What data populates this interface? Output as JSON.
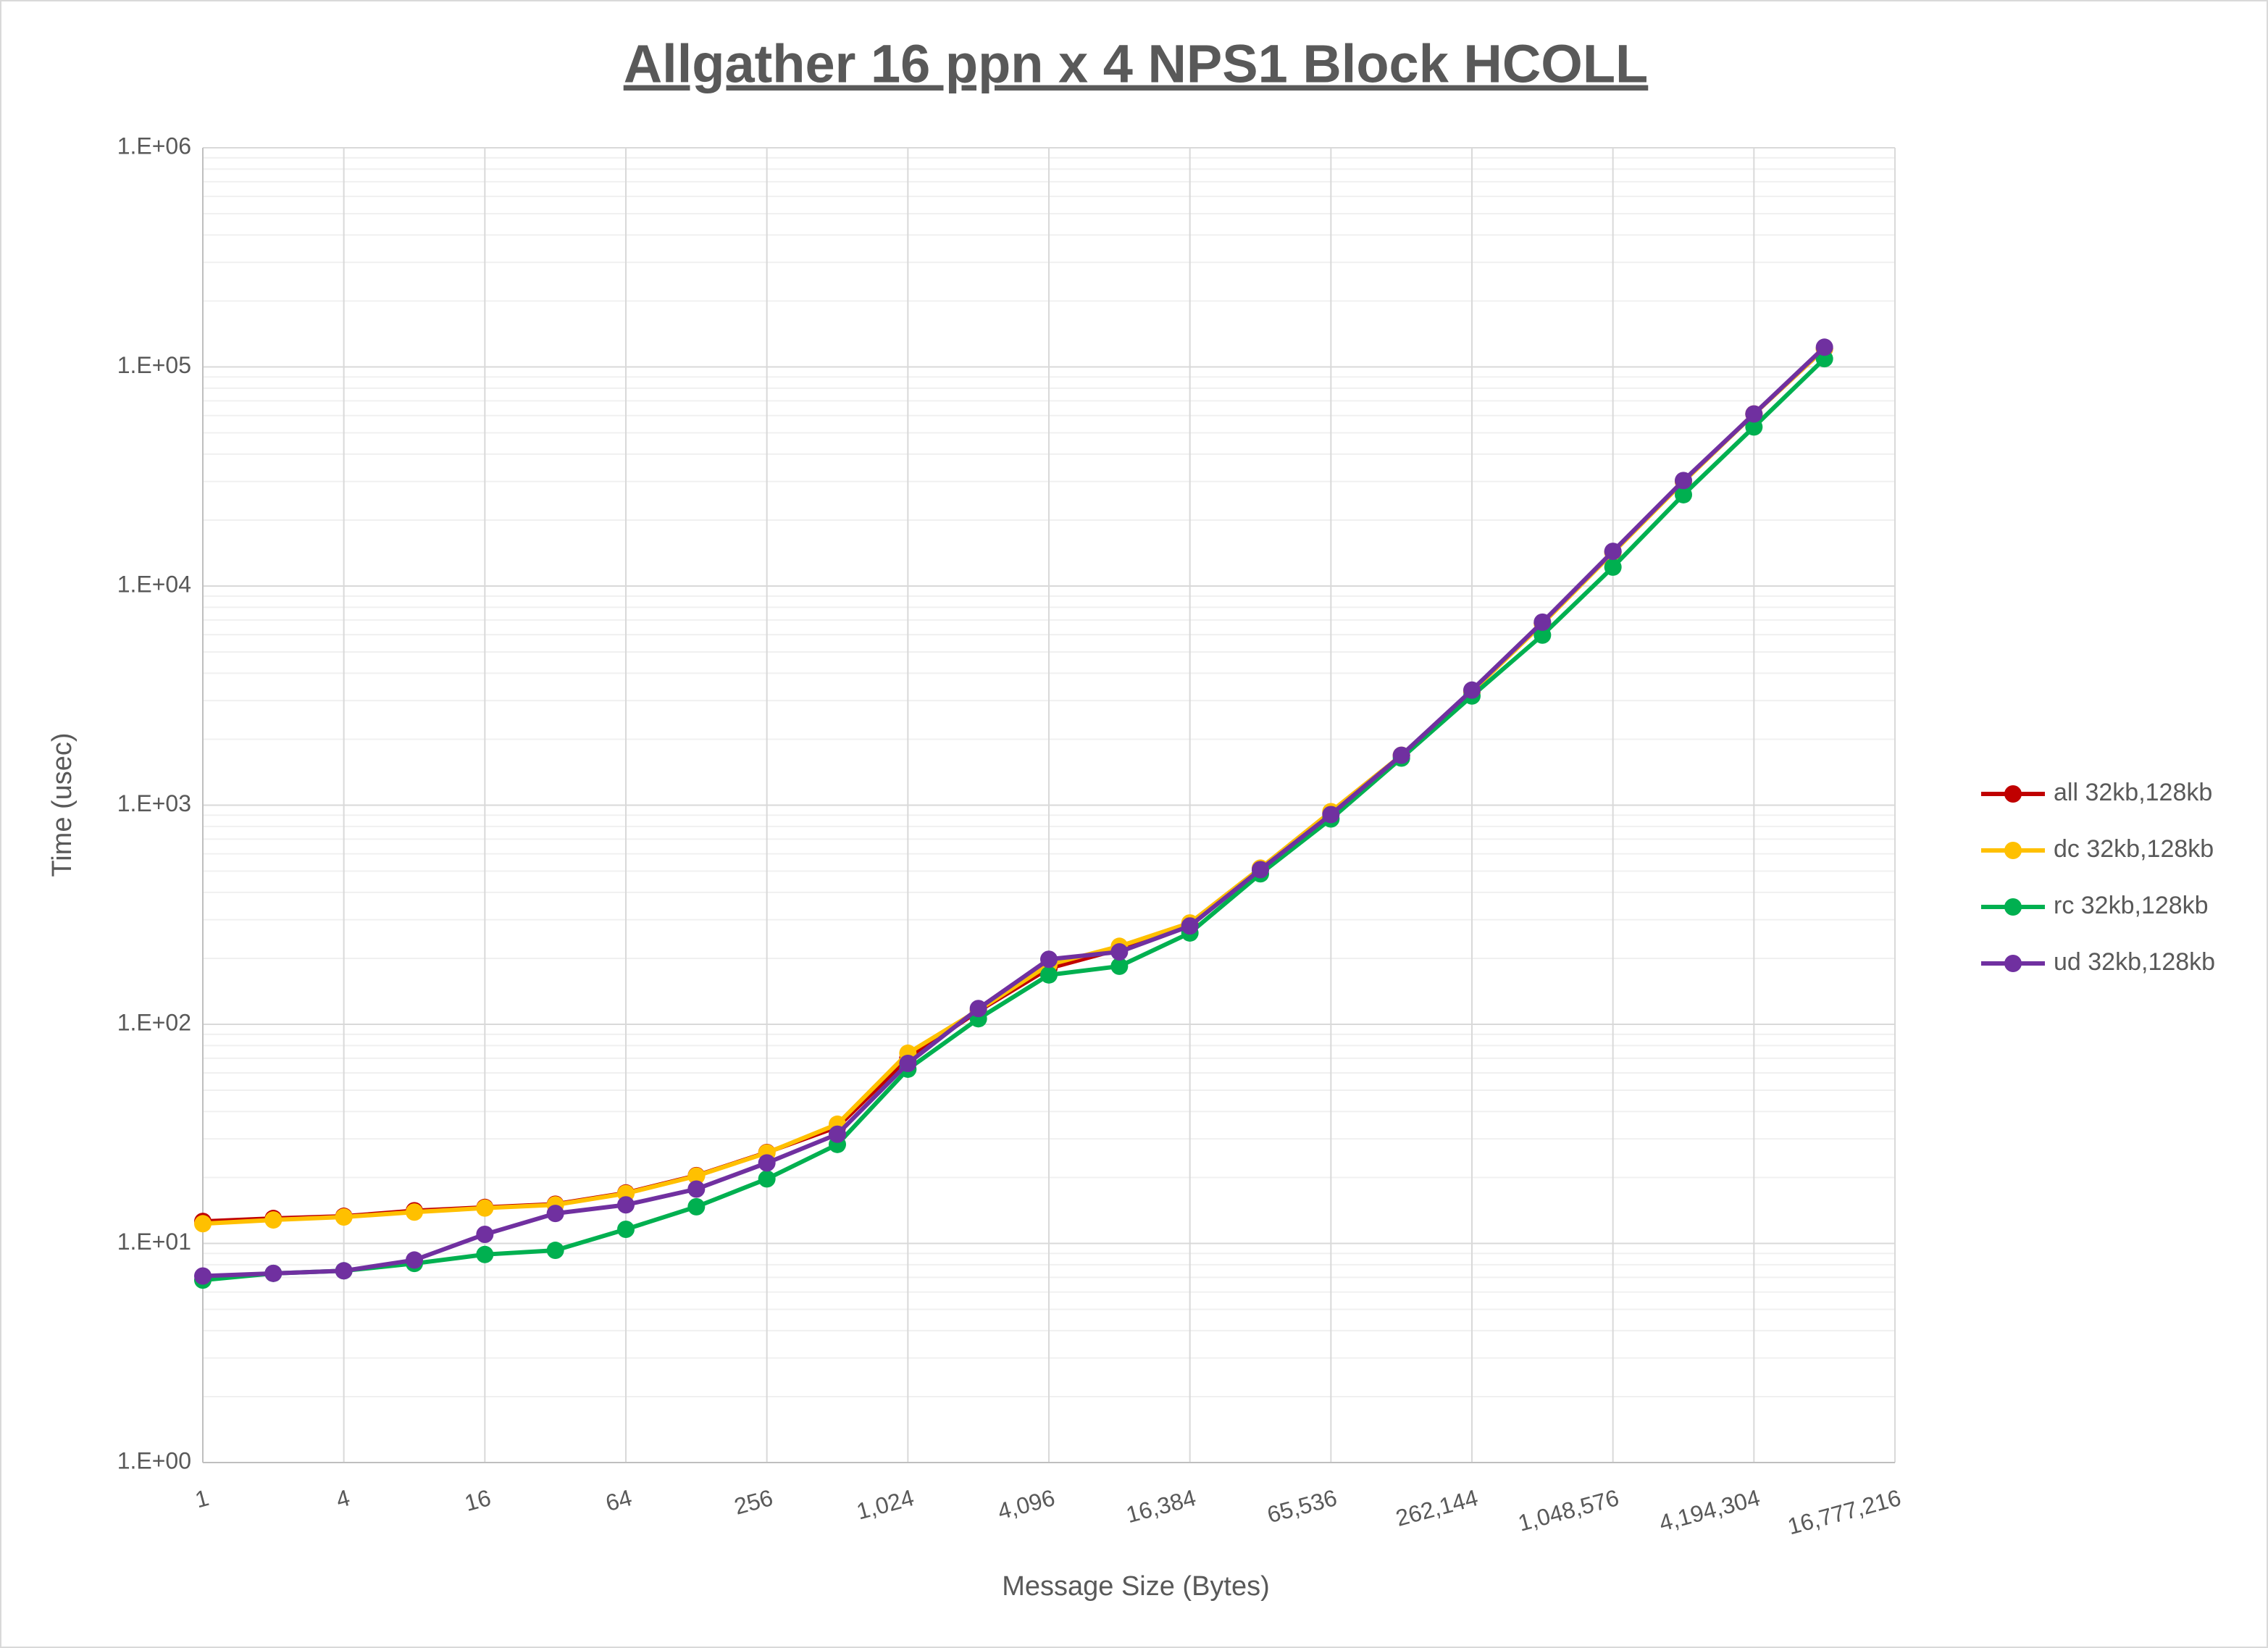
{
  "chart_data": {
    "type": "line",
    "title": "Allgather 16 ppn x 4 NPS1 Block HCOLL",
    "x_label": "Message Size (Bytes)",
    "y_label": "Time (usec)",
    "x": [
      1,
      2,
      4,
      8,
      16,
      32,
      64,
      128,
      256,
      512,
      1024,
      2048,
      4096,
      8192,
      16384,
      32768,
      65536,
      131072,
      262144,
      524288,
      1048576,
      2097152,
      4194304,
      8388608
    ],
    "series": [
      {
        "name": "all 32kb,128kb",
        "color": "#c00000",
        "values": [
          12.6,
          13.0,
          13.3,
          14.1,
          14.6,
          15.1,
          17.0,
          20.4,
          26.0,
          34.0,
          70.0,
          115,
          180,
          220,
          285,
          510,
          920,
          1680,
          3300,
          6750,
          14300,
          30000,
          61000,
          121000
        ]
      },
      {
        "name": "dc 32kb,128kb",
        "color": "#ffc000",
        "values": [
          12.3,
          12.8,
          13.2,
          13.9,
          14.5,
          15.0,
          16.9,
          20.3,
          25.9,
          35.0,
          73.8,
          116,
          187,
          227,
          290,
          516,
          934,
          1690,
          3300,
          6730,
          14200,
          29900,
          60900,
          121000
        ]
      },
      {
        "name": "rc 32kb,128kb",
        "color": "#00b050",
        "values": [
          6.8,
          7.3,
          7.5,
          8.1,
          8.9,
          9.3,
          11.6,
          14.7,
          19.7,
          28.3,
          62.4,
          106,
          168,
          184,
          261,
          486,
          865,
          1640,
          3150,
          5970,
          12200,
          26100,
          53200,
          109000
        ]
      },
      {
        "name": "ud 32kb,128kb",
        "color": "#7030a0",
        "values": [
          7.1,
          7.3,
          7.5,
          8.4,
          11.0,
          13.7,
          15.0,
          17.7,
          23.3,
          31.5,
          66.3,
          118,
          198,
          214,
          281,
          508,
          906,
          1690,
          3350,
          6840,
          14400,
          30300,
          61000,
          123000
        ]
      }
    ],
    "xscale": "log2",
    "yscale": "log10",
    "xlim": [
      1,
      16777216
    ],
    "ylim": [
      1,
      1000000
    ],
    "xticks": [
      1,
      4,
      16,
      64,
      256,
      {
        "value": 1024,
        "label": "1,024"
      },
      {
        "value": 4096,
        "label": "4,096"
      },
      {
        "value": 16384,
        "label": "16,384"
      },
      {
        "value": 65536,
        "label": "65,536"
      },
      {
        "value": 262144,
        "label": "262,144"
      },
      {
        "value": 1048576,
        "label": "1,048,576"
      },
      {
        "value": 4194304,
        "label": "4,194,304"
      },
      {
        "value": 16777216,
        "label": "16,777,216"
      }
    ],
    "yticks": [
      {
        "value": 1,
        "label": "1.E+00"
      },
      {
        "value": 10,
        "label": "1.E+01"
      },
      {
        "value": 100,
        "label": "1.E+02"
      },
      {
        "value": 1000,
        "label": "1.E+03"
      },
      {
        "value": 10000,
        "label": "1.E+04"
      },
      {
        "value": 100000,
        "label": "1.E+05"
      },
      {
        "value": 1000000,
        "label": "1.E+06"
      }
    ],
    "grid": true,
    "minor_grid": true,
    "legend": "right"
  }
}
